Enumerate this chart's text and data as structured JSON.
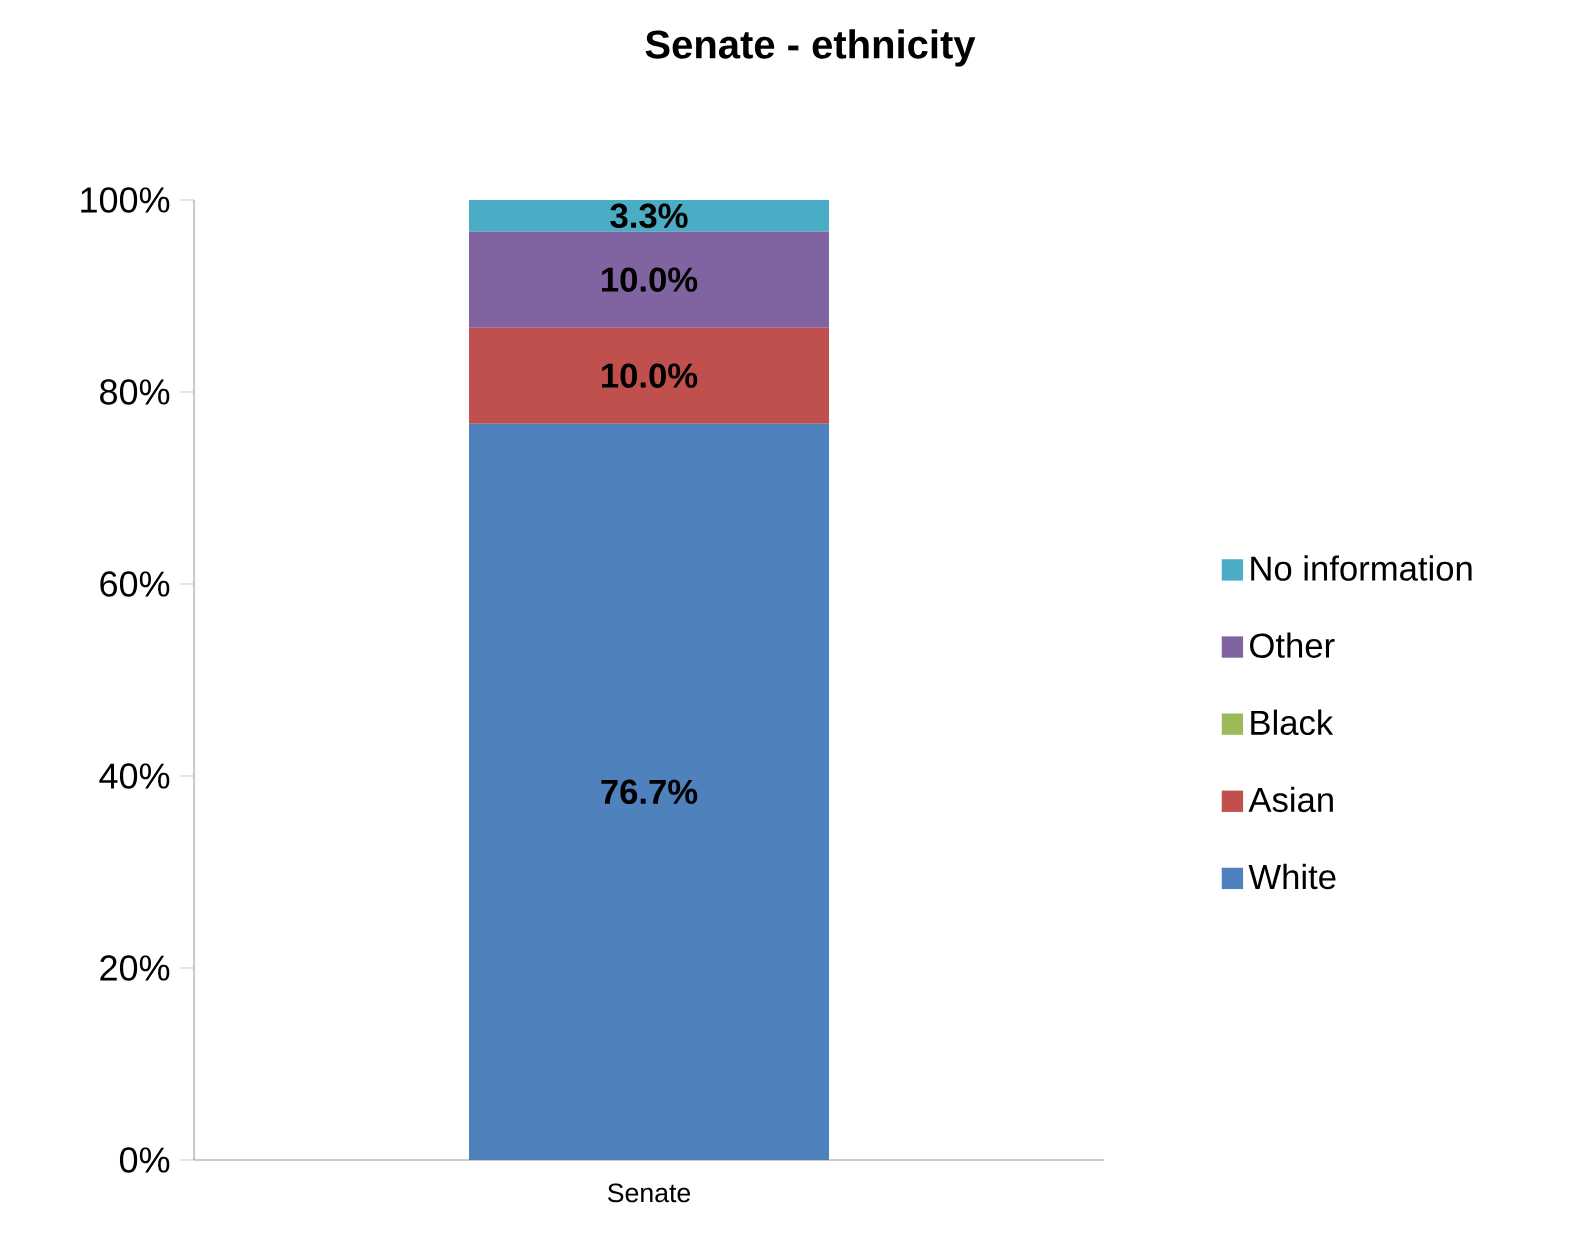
{
  "chart_data": {
    "type": "bar",
    "stacked": true,
    "title": "Senate - ethnicity",
    "categories": [
      "Senate"
    ],
    "series": [
      {
        "name": "White",
        "color": "#4f81bd",
        "values": [
          76.7
        ],
        "value_labels": [
          "76.7%"
        ]
      },
      {
        "name": "Asian",
        "color": "#c0504d",
        "values": [
          10.0
        ],
        "value_labels": [
          "10.0%"
        ]
      },
      {
        "name": "Black",
        "color": "#9bbb59",
        "values": [
          0
        ],
        "value_labels": [
          null
        ]
      },
      {
        "name": "Other",
        "color": "#8064a2",
        "values": [
          10.0
        ],
        "value_labels": [
          "10.0%"
        ]
      },
      {
        "name": "No information",
        "color": "#4bacc6",
        "values": [
          3.3
        ],
        "value_labels": [
          "3.3%"
        ]
      }
    ],
    "ylim": [
      0,
      100
    ],
    "yticks": [
      {
        "value": 0,
        "label": "0%"
      },
      {
        "value": 20,
        "label": "20%"
      },
      {
        "value": 40,
        "label": "40%"
      },
      {
        "value": 60,
        "label": "60%"
      },
      {
        "value": 80,
        "label": "80%"
      },
      {
        "value": 100,
        "label": "100%"
      }
    ],
    "grid": false,
    "legend": "right"
  }
}
